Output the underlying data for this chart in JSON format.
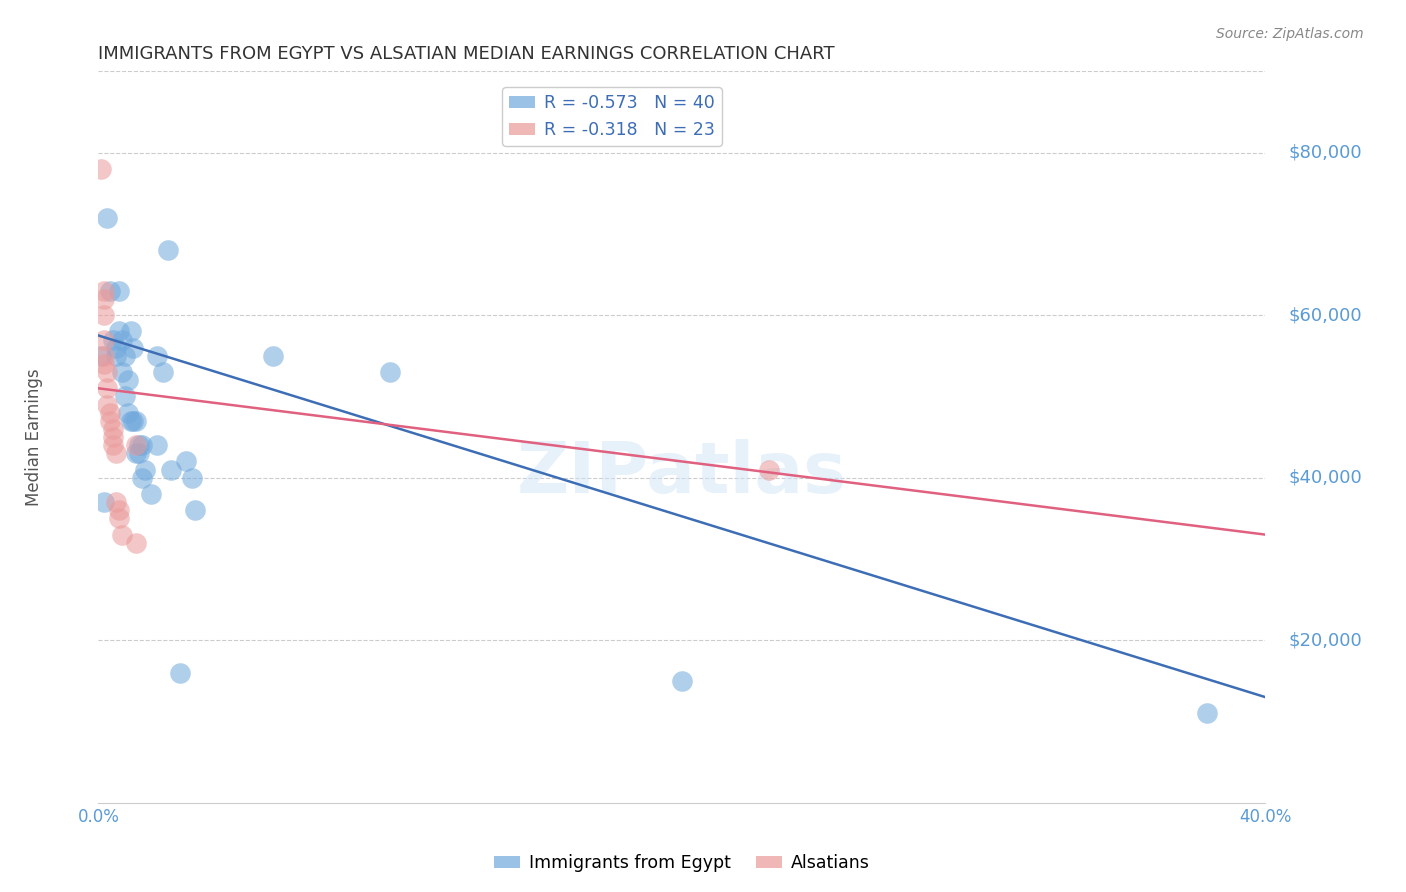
{
  "title": "IMMIGRANTS FROM EGYPT VS ALSATIAN MEDIAN EARNINGS CORRELATION CHART",
  "source": "Source: ZipAtlas.com",
  "ylabel": "Median Earnings",
  "xlim": [
    0.0,
    0.4
  ],
  "ylim": [
    0,
    90000
  ],
  "yticks": [
    20000,
    40000,
    60000,
    80000
  ],
  "ytick_labels": [
    "$20,000",
    "$40,000",
    "$60,000",
    "$80,000"
  ],
  "legend_entries": [
    {
      "label": "R = -0.573   N = 40",
      "color": "#6fa8dc"
    },
    {
      "label": "R = -0.318   N = 23",
      "color": "#ea9999"
    }
  ],
  "legend_x_labels": [
    "Immigrants from Egypt",
    "Alsatians"
  ],
  "watermark": "ZIPatlas",
  "blue_color": "#6fa8dc",
  "pink_color": "#ea9999",
  "blue_line_color": "#3d6eb5",
  "pink_line_color": "#e06080",
  "title_color": "#333333",
  "axis_label_color": "#5b9bd5",
  "grid_color": "#cccccc",
  "egypt_points": [
    [
      0.001,
      55000
    ],
    [
      0.003,
      72000
    ],
    [
      0.004,
      63000
    ],
    [
      0.005,
      57000
    ],
    [
      0.006,
      56000
    ],
    [
      0.006,
      55000
    ],
    [
      0.007,
      63000
    ],
    [
      0.007,
      58000
    ],
    [
      0.008,
      57000
    ],
    [
      0.008,
      53000
    ],
    [
      0.009,
      55000
    ],
    [
      0.009,
      50000
    ],
    [
      0.01,
      52000
    ],
    [
      0.01,
      48000
    ],
    [
      0.011,
      58000
    ],
    [
      0.011,
      47000
    ],
    [
      0.012,
      56000
    ],
    [
      0.012,
      47000
    ],
    [
      0.013,
      47000
    ],
    [
      0.013,
      43000
    ],
    [
      0.014,
      44000
    ],
    [
      0.014,
      43000
    ],
    [
      0.015,
      44000
    ],
    [
      0.015,
      40000
    ],
    [
      0.016,
      41000
    ],
    [
      0.018,
      38000
    ],
    [
      0.02,
      55000
    ],
    [
      0.02,
      44000
    ],
    [
      0.022,
      53000
    ],
    [
      0.024,
      68000
    ],
    [
      0.025,
      41000
    ],
    [
      0.028,
      16000
    ],
    [
      0.03,
      42000
    ],
    [
      0.032,
      40000
    ],
    [
      0.033,
      36000
    ],
    [
      0.06,
      55000
    ],
    [
      0.1,
      53000
    ],
    [
      0.2,
      15000
    ],
    [
      0.38,
      11000
    ],
    [
      0.002,
      37000
    ]
  ],
  "alsatian_points": [
    [
      0.001,
      78000
    ],
    [
      0.002,
      63000
    ],
    [
      0.002,
      62000
    ],
    [
      0.002,
      60000
    ],
    [
      0.002,
      57000
    ],
    [
      0.002,
      55000
    ],
    [
      0.002,
      54000
    ],
    [
      0.003,
      53000
    ],
    [
      0.003,
      51000
    ],
    [
      0.003,
      49000
    ],
    [
      0.004,
      48000
    ],
    [
      0.004,
      47000
    ],
    [
      0.005,
      46000
    ],
    [
      0.005,
      45000
    ],
    [
      0.005,
      44000
    ],
    [
      0.006,
      43000
    ],
    [
      0.006,
      37000
    ],
    [
      0.007,
      36000
    ],
    [
      0.007,
      35000
    ],
    [
      0.008,
      33000
    ],
    [
      0.013,
      44000
    ],
    [
      0.23,
      41000
    ],
    [
      0.013,
      32000
    ]
  ],
  "blue_trendline": [
    [
      0.0,
      57500
    ],
    [
      0.4,
      13000
    ]
  ],
  "pink_trendline": [
    [
      0.0,
      51000
    ],
    [
      0.4,
      33000
    ]
  ]
}
